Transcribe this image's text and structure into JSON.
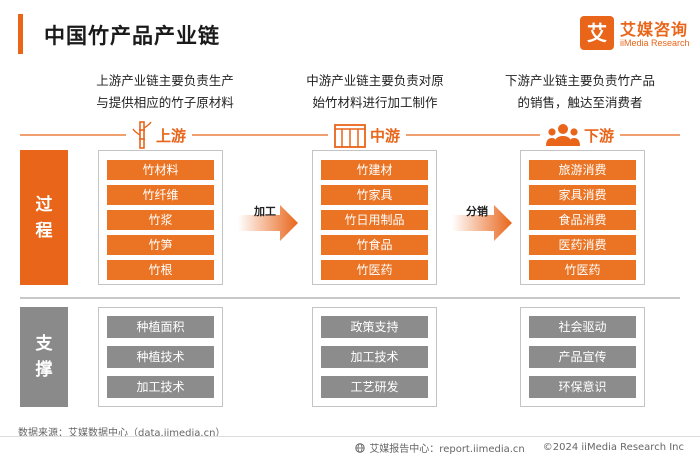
{
  "header": {
    "title": "中国竹产品产业链",
    "logo_mark": "艾",
    "logo_cn": "艾媒咨询",
    "logo_en": "iiMedia Research"
  },
  "side": {
    "process": "过\n程",
    "support": "支\n撑"
  },
  "stages": [
    {
      "name": "上游",
      "icon": "bamboo-icon",
      "desc": [
        "上游产业链主要负责生产",
        "与提供相应的竹子原材料"
      ],
      "process": [
        "竹材料",
        "竹纤维",
        "竹浆",
        "竹笋",
        "竹根"
      ],
      "support": [
        "种植面积",
        "种植技术",
        "加工技术"
      ]
    },
    {
      "name": "中游",
      "icon": "factory-icon",
      "desc": [
        "中游产业链主要负责对原",
        "始竹材料进行加工制作"
      ],
      "process": [
        "竹建材",
        "竹家具",
        "竹日用制品",
        "竹食品",
        "竹医药"
      ],
      "support": [
        "政策支持",
        "加工技术",
        "工艺研发"
      ]
    },
    {
      "name": "下游",
      "icon": "consumers-icon",
      "desc": [
        "下游产业链主要负责竹产品",
        "的销售，触达至消费者"
      ],
      "process": [
        "旅游消费",
        "家具消费",
        "食品消费",
        "医药消费",
        "竹医药"
      ],
      "support": [
        "社会驱动",
        "产品宣传",
        "环保意识"
      ]
    }
  ],
  "arrows": [
    "加工",
    "分销"
  ],
  "footer": {
    "source": "数据来源：艾媒数据中心（data.iimedia.cn）",
    "center": "艾媒报告中心：report.iimedia.cn",
    "copyright": "©2024  iiMedia Research Inc"
  },
  "colors": {
    "accent": "#e8651a",
    "gray": "#8c8c8c"
  }
}
